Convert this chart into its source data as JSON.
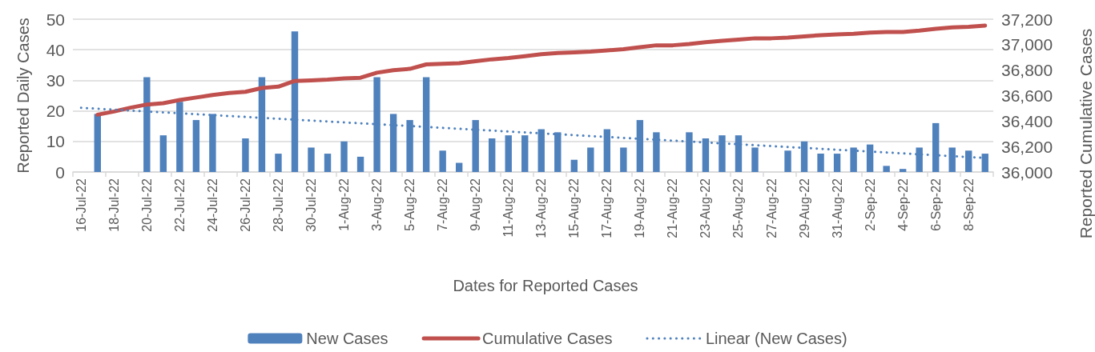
{
  "chart_data": {
    "type": "bar",
    "xlabel": "Dates for Reported Cases",
    "ylabel": "Reported Daily Cases",
    "y2label": "Reported Cumulative Cases",
    "x": [
      "--07-17",
      "--07-18",
      "--07-19",
      "--07-20",
      "--07-21",
      "--07-22",
      "--07-23",
      "--07-24",
      "--07-25",
      "--07-26",
      "--07-27",
      "--07-28",
      "--07-29",
      "--07-30",
      "--07-31",
      "--08-01",
      "--08-02",
      "--08-03",
      "--08-04",
      "--08-05",
      "--08-06",
      "--08-07",
      "--08-08",
      "--08-09",
      "--08-10",
      "--08-11",
      "--08-12",
      "--08-13",
      "--08-14",
      "--08-15",
      "--08-16",
      "--08-17",
      "--08-18",
      "--08-19",
      "--08-20",
      "--08-21",
      "--08-22",
      "--08-23",
      "--08-24",
      "--08-25",
      "--08-26",
      "--08-27",
      "--08-28",
      "--08-29",
      "--08-30",
      "--08-31",
      "--09-01",
      "--09-02",
      "--09-03",
      "--09-04",
      "--09-05",
      "--09-06",
      "--09-07",
      "--09-08",
      "--09-09"
    ],
    "xlim": [
      "--07-15T12:00",
      "--09-09T12:00"
    ],
    "xticks": [
      {
        "value": "--07-15T12:00",
        "label": null
      },
      {
        "value": "--07-16",
        "label": "16-Jul-22"
      },
      {
        "value": "--07-17T12:00",
        "label": null
      },
      {
        "value": "--07-18",
        "label": "18-Jul-22"
      },
      {
        "value": "--07-19T12:00",
        "label": null
      },
      {
        "value": "--07-20",
        "label": "20-Jul-22"
      },
      {
        "value": "--07-21T12:00",
        "label": null
      },
      {
        "value": "--07-22",
        "label": "22-Jul-22"
      },
      {
        "value": "--07-23T12:00",
        "label": null
      },
      {
        "value": "--07-24",
        "label": "24-Jul-22"
      },
      {
        "value": "--07-25T12:00",
        "label": null
      },
      {
        "value": "--07-26",
        "label": "26-Jul-22"
      },
      {
        "value": "--07-27T12:00",
        "label": null
      },
      {
        "value": "--07-28",
        "label": "28-Jul-22"
      },
      {
        "value": "--07-29T12:00",
        "label": null
      },
      {
        "value": "--07-30",
        "label": "30-Jul-22"
      },
      {
        "value": "--07-31T12:00",
        "label": null
      },
      {
        "value": "--08-01",
        "label": "1-Aug-22"
      },
      {
        "value": "--08-02T12:00",
        "label": null
      },
      {
        "value": "--08-03",
        "label": "3-Aug-22"
      },
      {
        "value": "--08-04T12:00",
        "label": null
      },
      {
        "value": "--08-05",
        "label": "5-Aug-22"
      },
      {
        "value": "--08-06T12:00",
        "label": null
      },
      {
        "value": "--08-07",
        "label": "7-Aug-22"
      },
      {
        "value": "--08-08T12:00",
        "label": null
      },
      {
        "value": "--08-09",
        "label": "9-Aug-22"
      },
      {
        "value": "--08-10T12:00",
        "label": null
      },
      {
        "value": "--08-11",
        "label": "11-Aug-22"
      },
      {
        "value": "--08-12T12:00",
        "label": null
      },
      {
        "value": "--08-13",
        "label": "13-Aug-22"
      },
      {
        "value": "--08-14T12:00",
        "label": null
      },
      {
        "value": "--08-15",
        "label": "15-Aug-22"
      },
      {
        "value": "--08-16T12:00",
        "label": null
      },
      {
        "value": "--08-17",
        "label": "17-Aug-22"
      },
      {
        "value": "--08-18T12:00",
        "label": null
      },
      {
        "value": "--08-19",
        "label": "19-Aug-22"
      },
      {
        "value": "--08-20T12:00",
        "label": null
      },
      {
        "value": "--08-21",
        "label": "21-Aug-22"
      },
      {
        "value": "--08-22T12:00",
        "label": null
      },
      {
        "value": "--08-23",
        "label": "23-Aug-22"
      },
      {
        "value": "--08-24T12:00",
        "label": null
      },
      {
        "value": "--08-25",
        "label": "25-Aug-22"
      },
      {
        "value": "--08-26T12:00",
        "label": null
      },
      {
        "value": "--08-27",
        "label": "27-Aug-22"
      },
      {
        "value": "--08-28T12:00",
        "label": null
      },
      {
        "value": "--08-29",
        "label": "29-Aug-22"
      },
      {
        "value": "--08-30T12:00",
        "label": null
      },
      {
        "value": "--08-31",
        "label": "31-Aug-22"
      },
      {
        "value": "--09-01T12:00",
        "label": null
      },
      {
        "value": "--09-02",
        "label": "2-Sep-22"
      },
      {
        "value": "--09-03T12:00",
        "label": null
      },
      {
        "value": "--09-04",
        "label": "4-Sep-22"
      },
      {
        "value": "--09-05T12:00",
        "label": null
      },
      {
        "value": "--09-06",
        "label": "6-Sep-22"
      },
      {
        "value": "--09-07T12:00",
        "label": null
      },
      {
        "value": "--09-08",
        "label": "8-Sep-22"
      },
      {
        "value": "--09-09T12:00",
        "label": null
      }
    ],
    "ylim": [
      0,
      50
    ],
    "yticks": [
      0,
      10,
      20,
      30,
      40,
      50
    ],
    "y2lim": [
      36000,
      37200
    ],
    "y2ticks": [
      {
        "value": 36000,
        "label": "36,000"
      },
      {
        "value": 36200,
        "label": "36,200"
      },
      {
        "value": 36400,
        "label": "36,400"
      },
      {
        "value": 36600,
        "label": "36,600"
      },
      {
        "value": 36800,
        "label": "36,800"
      },
      {
        "value": 37000,
        "label": "37,000"
      },
      {
        "value": 37200,
        "label": "37,200"
      }
    ],
    "series": [
      {
        "name": "New Cases",
        "color": "#4f81bd",
        "values": [
          19,
          null,
          null,
          31,
          12,
          23,
          17,
          19,
          null,
          11,
          31,
          6,
          46,
          8,
          6,
          10,
          5,
          31,
          19,
          17,
          31,
          7,
          3,
          17,
          11,
          12,
          12,
          14,
          13,
          4,
          8,
          14,
          8,
          17,
          13,
          null,
          13,
          11,
          12,
          12,
          8,
          null,
          7,
          10,
          6,
          6,
          8,
          9,
          2,
          1,
          8,
          16,
          8,
          7,
          6
        ]
      },
      {
        "name": "Cumulative Cases",
        "type": "line",
        "axis": "y2",
        "color": "#c0504d",
        "values": [
          36450,
          36475,
          36505,
          36530,
          36540,
          36565,
          36585,
          36605,
          36620,
          36630,
          36660,
          36670,
          36715,
          36720,
          36725,
          36735,
          36740,
          36780,
          36800,
          36810,
          36845,
          36850,
          36855,
          36870,
          36885,
          36895,
          36910,
          36925,
          36935,
          36940,
          36945,
          36955,
          36965,
          36980,
          36995,
          36995,
          37005,
          37020,
          37030,
          37040,
          37050,
          37050,
          37055,
          37065,
          37075,
          37080,
          37085,
          37095,
          37100,
          37100,
          37110,
          37125,
          37135,
          37140,
          37150
        ]
      },
      {
        "name": "Linear (New Cases)",
        "type": "line",
        "color": "#4f81bd",
        "line_style": "dotted",
        "x": [
          "--07-16",
          "--09-09"
        ],
        "values": [
          21,
          4.6
        ]
      }
    ],
    "grid": "y",
    "legend": "bottom",
    "marker": "none"
  }
}
